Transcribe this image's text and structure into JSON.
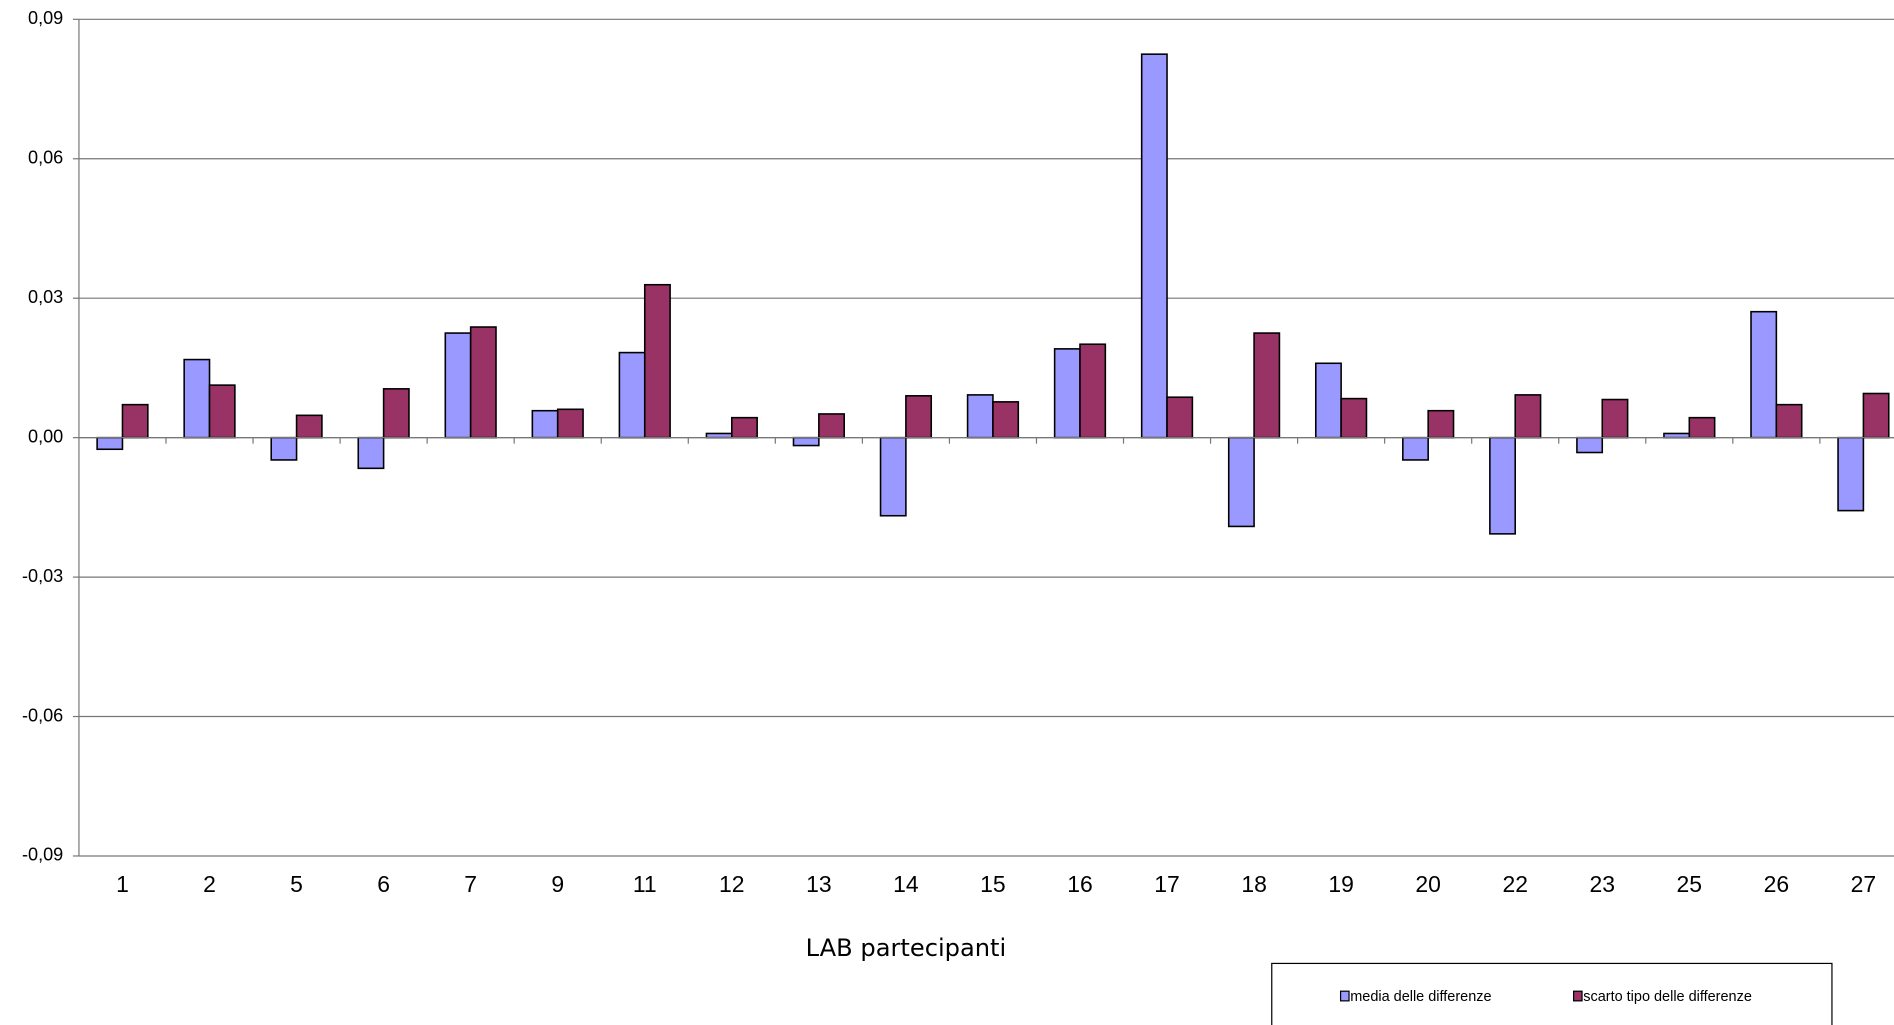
{
  "chart_data": {
    "type": "bar",
    "x_label": "LAB partecipanti",
    "categories": [
      "1",
      "2",
      "5",
      "6",
      "7",
      "9",
      "11",
      "12",
      "13",
      "14",
      "15",
      "16",
      "17",
      "18",
      "19",
      "20",
      "22",
      "23",
      "25",
      "26",
      "27"
    ],
    "series": [
      {
        "name": "media delle differenze",
        "color": "#9999ff",
        "values": [
          -0.0025,
          0.0168,
          -0.0048,
          -0.0066,
          0.0225,
          0.0058,
          0.0183,
          0.0009,
          -0.0017,
          -0.0168,
          0.0092,
          0.0191,
          0.0825,
          -0.0191,
          0.016,
          -0.0048,
          -0.0207,
          -0.0032,
          0.0009,
          0.0271,
          -0.0157
        ]
      },
      {
        "name": "scarto tipo delle differenze",
        "color": "#993366",
        "values": [
          0.0071,
          0.0113,
          0.0048,
          0.0105,
          0.0238,
          0.0061,
          0.0329,
          0.0043,
          0.0051,
          0.009,
          0.0077,
          0.0201,
          0.0087,
          0.0225,
          0.0084,
          0.0058,
          0.0092,
          0.0082,
          0.0043,
          0.0071,
          0.0095
        ]
      }
    ],
    "ylim": [
      -0.09,
      0.09
    ],
    "yticks": [
      {
        "value": -0.09,
        "label": "-0,09"
      },
      {
        "value": -0.06,
        "label": "-0,06"
      },
      {
        "value": -0.03,
        "label": "-0,03"
      },
      {
        "value": 0,
        "label": "0,00"
      },
      {
        "value": 0.03,
        "label": "0,03"
      },
      {
        "value": 0.06,
        "label": "0,06"
      },
      {
        "value": 0.09,
        "label": "0,09"
      }
    ],
    "grid": true,
    "legend": "bottom"
  }
}
